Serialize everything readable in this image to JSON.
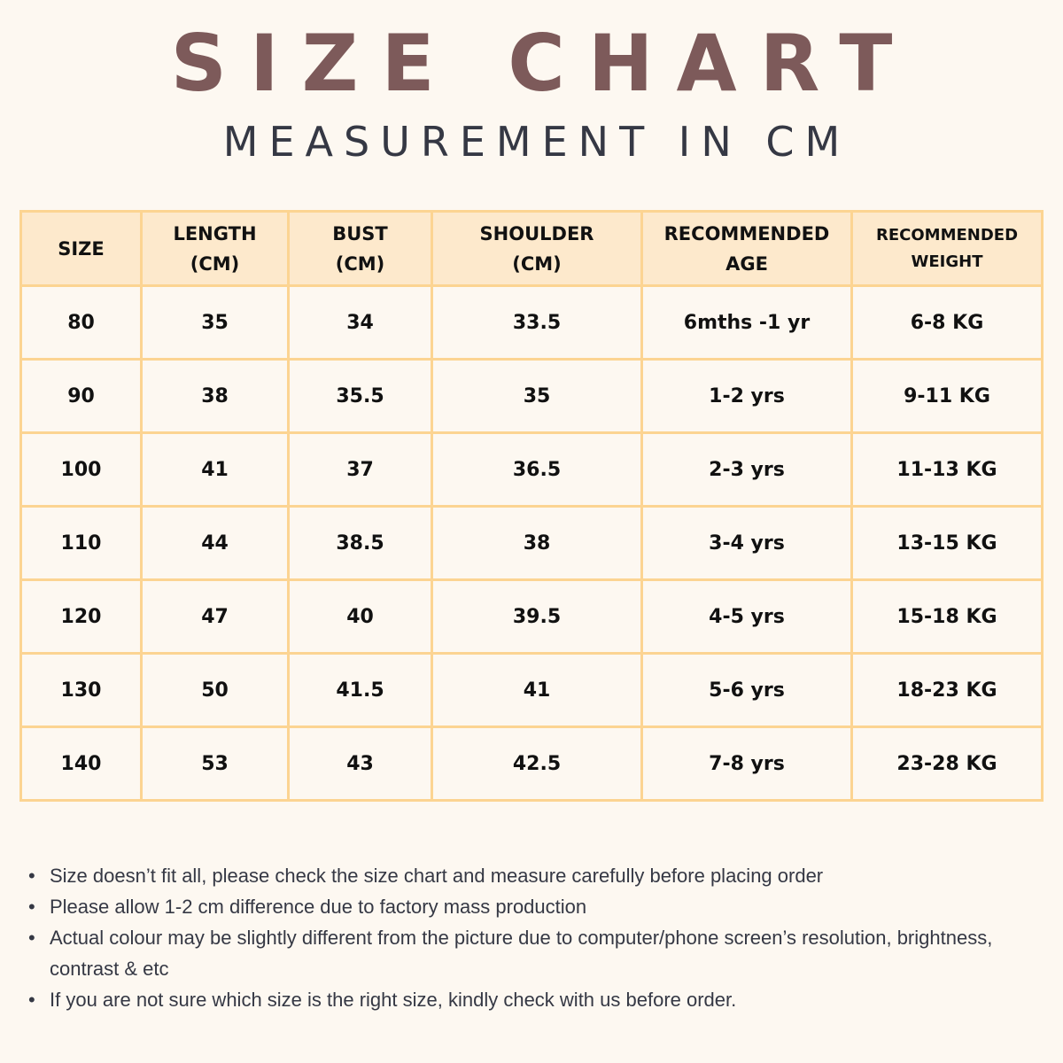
{
  "title": "SIZE CHART",
  "subtitle": "MEASUREMENT IN CM",
  "colors": {
    "title": "#7d5a5a",
    "subtitle": "#353844",
    "header_bg": "#fde9cc",
    "border": "#fcd492",
    "background": "#fdf8f1"
  },
  "table": {
    "headers": [
      {
        "line1": "SIZE",
        "line2": ""
      },
      {
        "line1": "LENGTH",
        "line2": "(CM)"
      },
      {
        "line1": "BUST",
        "line2": "(CM)"
      },
      {
        "line1": "SHOULDER",
        "line2": "(CM)"
      },
      {
        "line1": "RECOMMENDED",
        "line2": "AGE"
      },
      {
        "line1": "RECOMMENDED",
        "line2": "WEIGHT"
      }
    ],
    "rows": [
      [
        "80",
        "35",
        "34",
        "33.5",
        "6mths -1 yr",
        "6-8 KG"
      ],
      [
        "90",
        "38",
        "35.5",
        "35",
        "1-2 yrs",
        "9-11 KG"
      ],
      [
        "100",
        "41",
        "37",
        "36.5",
        "2-3 yrs",
        "11-13 KG"
      ],
      [
        "110",
        "44",
        "38.5",
        "38",
        "3-4 yrs",
        "13-15 KG"
      ],
      [
        "120",
        "47",
        "40",
        "39.5",
        "4-5 yrs",
        "15-18 KG"
      ],
      [
        "130",
        "50",
        "41.5",
        "41",
        "5-6 yrs",
        "18-23 KG"
      ],
      [
        "140",
        "53",
        "43",
        "42.5",
        "7-8 yrs",
        "23-28 KG"
      ]
    ]
  },
  "notes": [
    "Size doesn’t fit all, please check the size chart and measure carefully before placing order",
    "Please allow 1-2 cm difference due to factory mass production",
    "Actual colour may be slightly different from the picture due to computer/phone screen’s resolution, brightness, contrast & etc",
    "If you are not sure which size is the right size, kindly check with us before order."
  ],
  "bullet": "•"
}
